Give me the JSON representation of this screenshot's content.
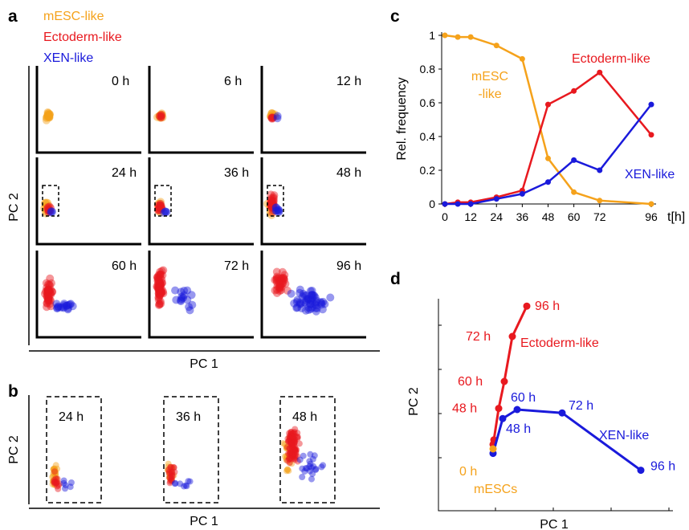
{
  "colors": {
    "mesc": "#F5A21B",
    "ecto": "#E8191F",
    "xen": "#1A1ADB",
    "axis": "#000000"
  },
  "panel_letters": {
    "a": "a",
    "b": "b",
    "c": "c",
    "d": "d"
  },
  "legend": {
    "mesc": "mESC-like",
    "ecto": "Ectoderm-like",
    "xen": "XEN-like"
  },
  "panel_a": {
    "xlabel": "PC 1",
    "ylabel": "PC 2",
    "times": [
      "0 h",
      "6 h",
      "12 h",
      "24 h",
      "36 h",
      "48 h",
      "60 h",
      "72 h",
      "96 h"
    ]
  },
  "panel_b": {
    "xlabel": "PC 1",
    "ylabel": "PC 2",
    "times": [
      "24 h",
      "36 h",
      "48 h"
    ]
  },
  "chart_data": [
    {
      "panel": "c",
      "type": "line",
      "x": [
        0,
        6,
        12,
        24,
        36,
        48,
        60,
        72,
        96
      ],
      "xticks": [
        "0",
        "12",
        "24",
        "36",
        "48",
        "60",
        "72",
        "96"
      ],
      "xlabel": "t[h]",
      "ylabel": "Rel. frequency",
      "yticks": [
        "0",
        "0.2",
        "0.4",
        "0.6",
        "0.8",
        "1"
      ],
      "xlim": [
        0,
        96
      ],
      "ylim": [
        0,
        1
      ],
      "series": [
        {
          "name": "mESC\n-like",
          "key": "mesc",
          "values": [
            1.0,
            0.99,
            0.99,
            0.94,
            0.86,
            0.27,
            0.07,
            0.02,
            0.0
          ]
        },
        {
          "name": "Ectoderm-like",
          "key": "ecto",
          "values": [
            0.0,
            0.01,
            0.01,
            0.04,
            0.08,
            0.59,
            0.67,
            0.78,
            0.41
          ]
        },
        {
          "name": "XEN-like",
          "key": "xen",
          "values": [
            0.0,
            0.0,
            0.0,
            0.03,
            0.06,
            0.13,
            0.26,
            0.2,
            0.59
          ]
        }
      ]
    },
    {
      "panel": "d",
      "type": "line",
      "xlabel": "PC 1",
      "ylabel": "PC 2",
      "start_label": "0 h",
      "start_caption": "mESCs",
      "series": [
        {
          "name": "Ectoderm-like",
          "key": "ecto",
          "points": [
            {
              "t": "",
              "x": 0.3,
              "y": 0.95
            },
            {
              "t": "",
              "x": 0.35,
              "y": 1.15
            },
            {
              "t": "48 h",
              "x": 0.65,
              "y": 2.55
            },
            {
              "t": "60 h",
              "x": 1.0,
              "y": 3.75
            },
            {
              "t": "72 h",
              "x": 1.5,
              "y": 5.75
            },
            {
              "t": "96 h",
              "x": 2.4,
              "y": 7.1
            }
          ]
        },
        {
          "name": "XEN-like",
          "key": "xen",
          "points": [
            {
              "t": "",
              "x": 0.3,
              "y": 0.55
            },
            {
              "t": "48 h",
              "x": 0.9,
              "y": 2.1
            },
            {
              "t": "60 h",
              "x": 1.8,
              "y": 2.5
            },
            {
              "t": "72 h",
              "x": 4.6,
              "y": 2.35
            },
            {
              "t": "96 h",
              "x": 9.5,
              "y": -0.2
            }
          ]
        }
      ],
      "yticks": 4,
      "xticks": 4
    }
  ]
}
